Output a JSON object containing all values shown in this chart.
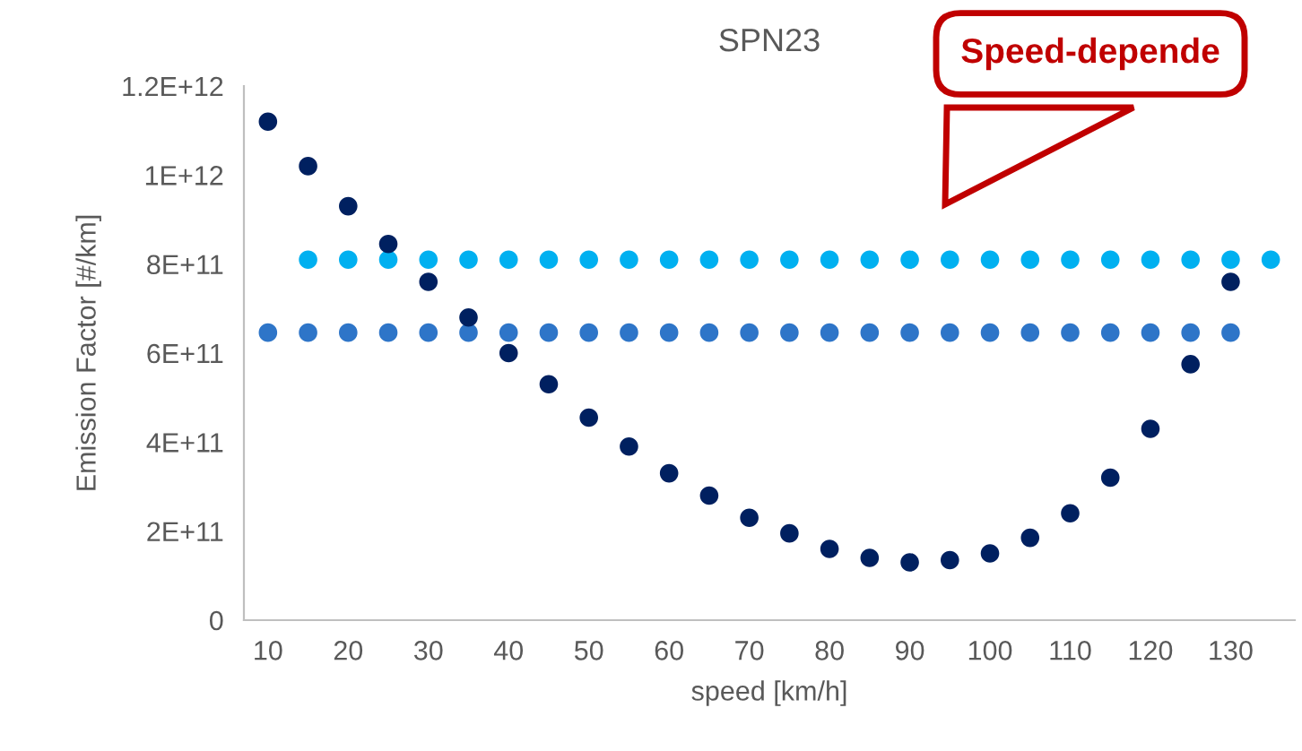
{
  "chart_data": {
    "type": "scatter",
    "title": "SPN23",
    "xlabel": "speed [km/h]",
    "ylabel": "Emission Factor [#/km]",
    "xlim": [
      7,
      138
    ],
    "xticks": [
      10,
      20,
      30,
      40,
      50,
      60,
      70,
      80,
      90,
      100,
      110,
      120,
      130
    ],
    "ylim": [
      0,
      1200000000000.0
    ],
    "yticks": [
      {
        "value": 0,
        "label": "0"
      },
      {
        "value": 200000000000.0,
        "label": "2E+11"
      },
      {
        "value": 400000000000.0,
        "label": "4E+11"
      },
      {
        "value": 600000000000.0,
        "label": "6E+11"
      },
      {
        "value": 800000000000.0,
        "label": "8E+11"
      },
      {
        "value": 1000000000000.0,
        "label": "1E+12"
      },
      {
        "value": 1200000000000.0,
        "label": "1.2E+12"
      }
    ],
    "grid": false,
    "legend": false,
    "marker": "circle",
    "annotations": [
      "Speed-depende"
    ],
    "series": [
      {
        "color": "#00b0f0",
        "x": [
          15,
          20,
          25,
          30,
          35,
          40,
          45,
          50,
          55,
          60,
          65,
          70,
          75,
          80,
          85,
          90,
          95,
          100,
          105,
          110,
          115,
          120,
          125,
          130,
          135
        ],
        "values": [
          810000000000.0,
          810000000000.0,
          810000000000.0,
          810000000000.0,
          810000000000.0,
          810000000000.0,
          810000000000.0,
          810000000000.0,
          810000000000.0,
          810000000000.0,
          810000000000.0,
          810000000000.0,
          810000000000.0,
          810000000000.0,
          810000000000.0,
          810000000000.0,
          810000000000.0,
          810000000000.0,
          810000000000.0,
          810000000000.0,
          810000000000.0,
          810000000000.0,
          810000000000.0,
          810000000000.0,
          810000000000.0
        ]
      },
      {
        "color": "#2e75c8",
        "x": [
          10,
          15,
          20,
          25,
          30,
          35,
          40,
          45,
          50,
          55,
          60,
          65,
          70,
          75,
          80,
          85,
          90,
          95,
          100,
          105,
          110,
          115,
          120,
          125,
          130
        ],
        "values": [
          646000000000.0,
          646000000000.0,
          646000000000.0,
          646000000000.0,
          646000000000.0,
          646000000000.0,
          646000000000.0,
          646000000000.0,
          646000000000.0,
          646000000000.0,
          646000000000.0,
          646000000000.0,
          646000000000.0,
          646000000000.0,
          646000000000.0,
          646000000000.0,
          646000000000.0,
          646000000000.0,
          646000000000.0,
          646000000000.0,
          646000000000.0,
          646000000000.0,
          646000000000.0,
          646000000000.0,
          646000000000.0
        ]
      },
      {
        "color": "#002060",
        "x": [
          10,
          15,
          20,
          25,
          30,
          35,
          40,
          45,
          50,
          55,
          60,
          65,
          70,
          75,
          80,
          85,
          90,
          95,
          100,
          105,
          110,
          115,
          120,
          125,
          130
        ],
        "values": [
          1120000000000.0,
          1020000000000.0,
          930000000000.0,
          845000000000.0,
          760000000000.0,
          680000000000.0,
          600000000000.0,
          530000000000.0,
          455000000000.0,
          390000000000.0,
          330000000000.0,
          280000000000.0,
          230000000000.0,
          195000000000.0,
          160000000000.0,
          140000000000.0,
          130000000000.0,
          135000000000.0,
          150000000000.0,
          185000000000.0,
          240000000000.0,
          320000000000.0,
          430000000000.0,
          575000000000.0,
          760000000000.0
        ]
      }
    ]
  }
}
